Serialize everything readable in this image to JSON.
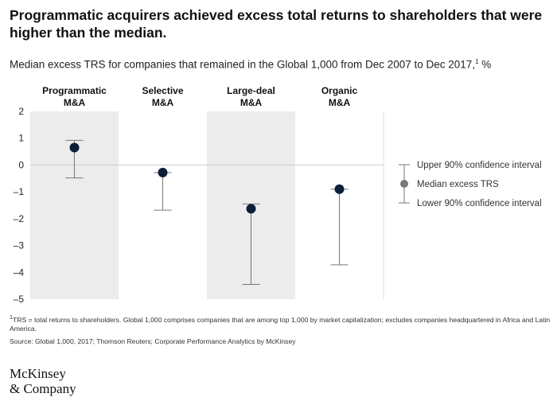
{
  "title": "Programmatic acquirers achieved excess total returns to shareholders that were higher than the median.",
  "subtitle": "Median excess TRS for companies that remained in the Global 1,000 from Dec 2007 to Dec 2017,",
  "subtitle_sup": "1",
  "subtitle_unit": " %",
  "footnote": "TRS = total returns to shareholders. Global 1,000 comprises companies that are among top 1,000 by market capitalization; excludes companies headquartered in Africa and Latin America.",
  "footnote_mark": "1",
  "source": "Source: Global 1,000, 2017; Thomson Reuters; Corporate Performance Analytics by McKinsey",
  "logo": {
    "line1": "McKinsey",
    "line2": "& Company"
  },
  "colors": {
    "shade": "#ececec",
    "dot": "#0b1f3a",
    "whisker": "#777777",
    "zero": "#cccccc"
  },
  "chart_data": {
    "type": "scatter",
    "title": "Median excess TRS for companies that remained in the Global 1,000 from Dec 2007 to Dec 2017",
    "ylabel": "%",
    "ylim": [
      -5,
      2
    ],
    "yticks": [
      2,
      1,
      0,
      -1,
      -2,
      -3,
      -4,
      -5
    ],
    "categories": [
      {
        "line1": "Programmatic",
        "line2": "M&A",
        "median": 0.65,
        "upper": 0.92,
        "lower": -0.48,
        "shaded": true
      },
      {
        "line1": "Selective",
        "line2": "M&A",
        "median": -0.28,
        "upper": -0.28,
        "lower": -1.68,
        "shaded": false
      },
      {
        "line1": "Large-deal",
        "line2": "M&A",
        "median": -1.63,
        "upper": -1.45,
        "lower": -4.45,
        "shaded": true
      },
      {
        "line1": "Organic",
        "line2": "M&A",
        "median": -0.9,
        "upper": -0.9,
        "lower": -3.72,
        "shaded": false
      }
    ],
    "legend": {
      "upper": "Upper 90% confidence interval",
      "median": "Median excess TRS",
      "lower": "Lower 90% confidence interval"
    }
  }
}
